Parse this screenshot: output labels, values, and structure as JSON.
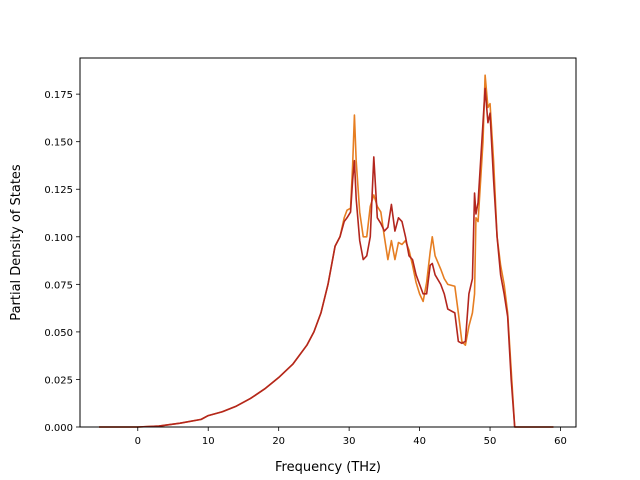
{
  "chart_data": {
    "type": "line",
    "title": "",
    "xlabel": "Frequency (THz)",
    "ylabel": "Partial Density of States",
    "xlim": [
      -8.2,
      62.2
    ],
    "ylim": [
      0.0,
      0.194
    ],
    "xticks": [
      0,
      10,
      20,
      30,
      40,
      50,
      60
    ],
    "yticks": [
      0.0,
      0.025,
      0.05,
      0.075,
      0.1,
      0.125,
      0.15,
      0.175
    ],
    "ytick_labels": [
      "0.000",
      "0.025",
      "0.050",
      "0.075",
      "0.100",
      "0.125",
      "0.150",
      "0.175"
    ],
    "grid": false,
    "legend": null,
    "series": [
      {
        "color": "#e67e22",
        "points": [
          [
            -5.5,
            0.0
          ],
          [
            0,
            0.0
          ],
          [
            3,
            0.0005
          ],
          [
            6,
            0.002
          ],
          [
            9,
            0.004
          ],
          [
            10,
            0.006
          ],
          [
            12,
            0.008
          ],
          [
            14,
            0.011
          ],
          [
            16,
            0.015
          ],
          [
            18,
            0.02
          ],
          [
            20,
            0.026
          ],
          [
            22,
            0.033
          ],
          [
            24,
            0.043
          ],
          [
            25,
            0.05
          ],
          [
            26,
            0.06
          ],
          [
            27,
            0.075
          ],
          [
            28,
            0.095
          ],
          [
            28.7,
            0.1
          ],
          [
            29.3,
            0.11
          ],
          [
            29.7,
            0.114
          ],
          [
            30.2,
            0.115
          ],
          [
            30.5,
            0.138
          ],
          [
            30.75,
            0.164
          ],
          [
            31,
            0.14
          ],
          [
            31.5,
            0.113
          ],
          [
            32,
            0.1
          ],
          [
            32.5,
            0.1
          ],
          [
            33,
            0.116
          ],
          [
            33.5,
            0.122
          ],
          [
            34,
            0.116
          ],
          [
            34.5,
            0.113
          ],
          [
            35,
            0.1
          ],
          [
            35.5,
            0.088
          ],
          [
            36,
            0.098
          ],
          [
            36.5,
            0.088
          ],
          [
            37,
            0.097
          ],
          [
            37.5,
            0.096
          ],
          [
            38,
            0.098
          ],
          [
            38.5,
            0.093
          ],
          [
            39,
            0.085
          ],
          [
            39.5,
            0.076
          ],
          [
            40,
            0.07
          ],
          [
            40.5,
            0.066
          ],
          [
            41,
            0.076
          ],
          [
            41.5,
            0.092
          ],
          [
            41.8,
            0.1
          ],
          [
            42.2,
            0.09
          ],
          [
            43,
            0.083
          ],
          [
            43.5,
            0.078
          ],
          [
            44,
            0.075
          ],
          [
            45,
            0.074
          ],
          [
            45.5,
            0.06
          ],
          [
            46,
            0.045
          ],
          [
            46.5,
            0.043
          ],
          [
            47,
            0.053
          ],
          [
            47.5,
            0.06
          ],
          [
            47.8,
            0.07
          ],
          [
            48,
            0.11
          ],
          [
            48.3,
            0.108
          ],
          [
            49,
            0.15
          ],
          [
            49.3,
            0.185
          ],
          [
            49.7,
            0.168
          ],
          [
            50,
            0.17
          ],
          [
            50.5,
            0.14
          ],
          [
            51,
            0.1
          ],
          [
            51.5,
            0.085
          ],
          [
            52,
            0.075
          ],
          [
            52.5,
            0.06
          ],
          [
            53,
            0.03
          ],
          [
            53.5,
            0.0
          ],
          [
            59,
            0.0
          ]
        ]
      },
      {
        "color": "#b3261e",
        "points": [
          [
            -5.5,
            0.0
          ],
          [
            0,
            0.0
          ],
          [
            3,
            0.0005
          ],
          [
            6,
            0.002
          ],
          [
            9,
            0.004
          ],
          [
            10,
            0.006
          ],
          [
            12,
            0.008
          ],
          [
            14,
            0.011
          ],
          [
            16,
            0.015
          ],
          [
            18,
            0.02
          ],
          [
            20,
            0.026
          ],
          [
            22,
            0.033
          ],
          [
            24,
            0.043
          ],
          [
            25,
            0.05
          ],
          [
            26,
            0.06
          ],
          [
            27,
            0.075
          ],
          [
            28,
            0.095
          ],
          [
            28.7,
            0.1
          ],
          [
            29.3,
            0.108
          ],
          [
            29.7,
            0.11
          ],
          [
            30.2,
            0.113
          ],
          [
            30.5,
            0.13
          ],
          [
            30.75,
            0.14
          ],
          [
            31,
            0.12
          ],
          [
            31.5,
            0.098
          ],
          [
            32,
            0.088
          ],
          [
            32.5,
            0.09
          ],
          [
            33,
            0.1
          ],
          [
            33.5,
            0.142
          ],
          [
            34,
            0.11
          ],
          [
            34.5,
            0.107
          ],
          [
            35,
            0.103
          ],
          [
            35.5,
            0.105
          ],
          [
            36,
            0.117
          ],
          [
            36.5,
            0.103
          ],
          [
            37,
            0.11
          ],
          [
            37.5,
            0.108
          ],
          [
            38,
            0.1
          ],
          [
            38.5,
            0.09
          ],
          [
            39,
            0.088
          ],
          [
            39.5,
            0.08
          ],
          [
            40,
            0.075
          ],
          [
            40.5,
            0.07
          ],
          [
            41,
            0.07
          ],
          [
            41.5,
            0.085
          ],
          [
            41.8,
            0.086
          ],
          [
            42.2,
            0.08
          ],
          [
            43,
            0.075
          ],
          [
            43.5,
            0.07
          ],
          [
            44,
            0.062
          ],
          [
            45,
            0.06
          ],
          [
            45.5,
            0.045
          ],
          [
            46,
            0.044
          ],
          [
            46.5,
            0.045
          ],
          [
            47,
            0.07
          ],
          [
            47.5,
            0.078
          ],
          [
            47.8,
            0.123
          ],
          [
            48,
            0.112
          ],
          [
            48.3,
            0.118
          ],
          [
            49,
            0.16
          ],
          [
            49.3,
            0.178
          ],
          [
            49.7,
            0.16
          ],
          [
            50,
            0.165
          ],
          [
            50.5,
            0.13
          ],
          [
            51,
            0.1
          ],
          [
            51.5,
            0.08
          ],
          [
            52,
            0.07
          ],
          [
            52.5,
            0.058
          ],
          [
            53,
            0.025
          ],
          [
            53.5,
            0.0
          ],
          [
            59,
            0.0
          ]
        ]
      }
    ]
  }
}
